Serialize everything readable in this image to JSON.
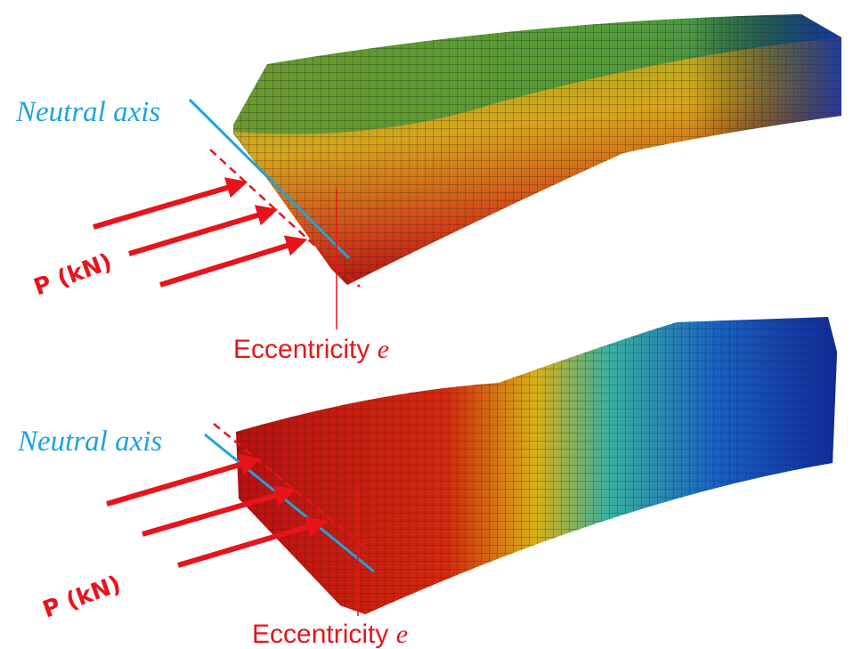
{
  "panels": [
    {
      "neutral_axis_label": "Neutral axis",
      "load_label": "P (kN)",
      "eccentricity_label": "Eccentricity ",
      "eccentricity_symbol": "e"
    },
    {
      "neutral_axis_label": "Neutral axis",
      "load_label": "P (kN)",
      "eccentricity_label": "Eccentricity ",
      "eccentricity_symbol": "e"
    }
  ]
}
